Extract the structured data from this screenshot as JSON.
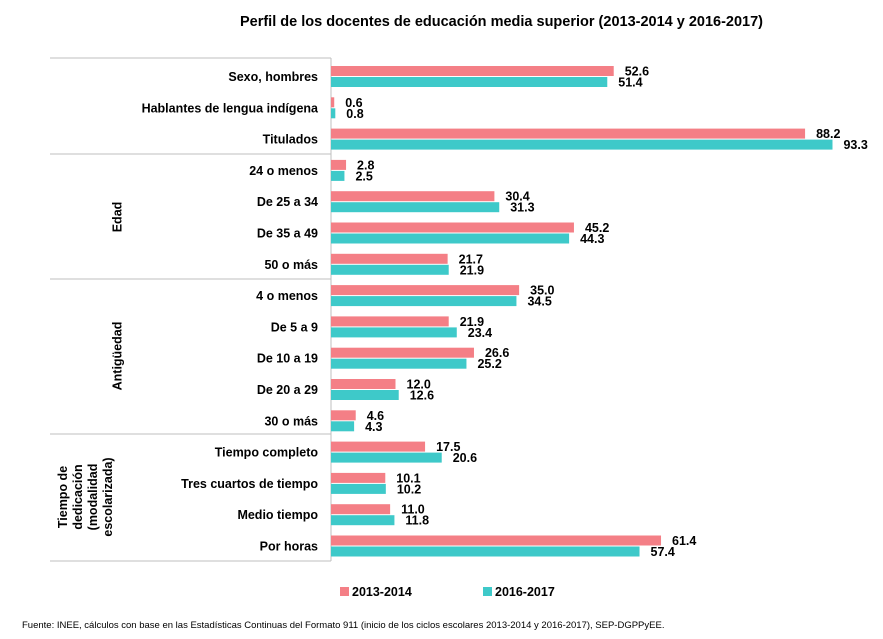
{
  "chart_data": {
    "type": "bar",
    "orientation": "horizontal",
    "title": "Perfil de los docentes de educación media superior (2013-2014 y 2016-2017)",
    "xlim": [
      0,
      95
    ],
    "grid": false,
    "legend_position": "bottom",
    "series": [
      {
        "name": "2013-2014",
        "color": "#f47f86"
      },
      {
        "name": "2016-2017",
        "color": "#3ec9c9"
      }
    ],
    "categories": [
      {
        "label": "Sexo, hombres",
        "group": "",
        "v1": "52.6",
        "v2": "51.4"
      },
      {
        "label": "Hablantes de lengua indígena",
        "group": "",
        "v1": "0.6",
        "v2": "0.8"
      },
      {
        "label": "Titulados",
        "group": "",
        "v1": "88.2",
        "v2": "93.3"
      },
      {
        "label": "24 o menos",
        "group": "Edad",
        "v1": "2.8",
        "v2": "2.5"
      },
      {
        "label": "De 25 a 34",
        "group": "Edad",
        "v1": "30.4",
        "v2": "31.3"
      },
      {
        "label": "De 35 a 49",
        "group": "Edad",
        "v1": "45.2",
        "v2": "44.3"
      },
      {
        "label": "50 o más",
        "group": "Edad",
        "v1": "21.7",
        "v2": "21.9"
      },
      {
        "label": "4 o menos",
        "group": "Antigüedad",
        "v1": "35.0",
        "v2": "34.5"
      },
      {
        "label": "De 5 a 9",
        "group": "Antigüedad",
        "v1": "21.9",
        "v2": "23.4"
      },
      {
        "label": "De 10 a 19",
        "group": "Antigüedad",
        "v1": "26.6",
        "v2": "25.2"
      },
      {
        "label": "De 20 a 29",
        "group": "Antigüedad",
        "v1": "12.0",
        "v2": "12.6"
      },
      {
        "label": "30 o más",
        "group": "Antigüedad",
        "v1": "4.6",
        "v2": "4.3"
      },
      {
        "label": "Tiempo completo",
        "group": "Tiempo de dedicación (modalidad escolarizada)",
        "v1": "17.5",
        "v2": "20.6"
      },
      {
        "label": "Tres cuartos de tiempo",
        "group": "Tiempo de dedicación (modalidad escolarizada)",
        "v1": "10.1",
        "v2": "10.2"
      },
      {
        "label": "Medio tiempo",
        "group": "Tiempo de dedicación (modalidad escolarizada)",
        "v1": "11.0",
        "v2": "11.8"
      },
      {
        "label": "Por horas",
        "group": "Tiempo de dedicación (modalidad escolarizada)",
        "v1": "61.4",
        "v2": "57.4"
      }
    ],
    "groups": [
      {
        "name": "Edad",
        "lines": [
          "Edad"
        ]
      },
      {
        "name": "Antigüedad",
        "lines": [
          "Antigüedad"
        ]
      },
      {
        "name": "Tiempo de dedicación (modalidad escolarizada)",
        "lines": [
          "Tiempo de",
          "dedicación",
          "(modalidad",
          "escolarizada)"
        ]
      }
    ]
  },
  "source_note": "Fuente: INEE, cálculos con base en las Estadísticas Continuas del Formato 911 (inicio de los ciclos escolares 2013-2014 y 2016-2017), SEP-DGPPyEE."
}
